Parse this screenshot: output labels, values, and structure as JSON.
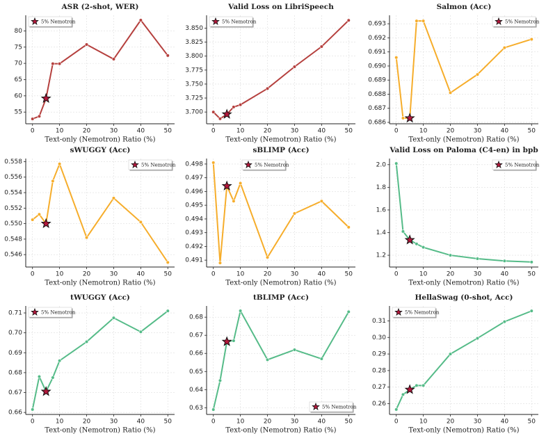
{
  "chart_data": [
    {
      "type": "line",
      "title": "ASR (2-shot, WER)",
      "x_label": "Text-only (Nemotron) Ratio (%)",
      "x": [
        0,
        2.5,
        5,
        7.5,
        10,
        20,
        30,
        40,
        50
      ],
      "values": [
        52.9,
        53.7,
        59.2,
        69.9,
        69.9,
        75.8,
        71.3,
        83.3,
        72.4
      ],
      "color": "#b5403e",
      "xlim": [
        -2.5,
        52.5
      ],
      "xticks": [
        0,
        10,
        20,
        30,
        40,
        50
      ],
      "ylim": [
        51.4,
        84.8
      ],
      "yticks": [
        55,
        60,
        65,
        70,
        75,
        80
      ],
      "grid": true,
      "highlight": {
        "label": "5% Nemotron",
        "x": 5,
        "color": "#b3173b"
      },
      "legend": "upper left"
    },
    {
      "type": "line",
      "title": "Valid Loss on LibriSpeech",
      "x_label": "Text-only (Nemotron) Ratio (%)",
      "x": [
        0,
        2.5,
        5,
        7.5,
        10,
        20,
        30,
        40,
        50
      ],
      "values": [
        3.7,
        3.688,
        3.696,
        3.709,
        3.713,
        3.742,
        3.781,
        3.817,
        3.864
      ],
      "color": "#b5403e",
      "xlim": [
        -2.5,
        52.5
      ],
      "xticks": [
        0,
        10,
        20,
        30,
        40,
        50
      ],
      "ylim": [
        3.679,
        3.873
      ],
      "yticks": [
        {
          "value": 3.7,
          "label": "3.700"
        },
        3.725,
        {
          "value": 3.75,
          "label": "3.750"
        },
        3.775,
        {
          "value": 3.8,
          "label": "3.800"
        },
        3.825,
        {
          "value": 3.85,
          "label": "3.850"
        }
      ],
      "grid": true,
      "highlight": {
        "label": "5% Nemotron",
        "x": 5,
        "color": "#b3173b"
      },
      "legend": "upper left"
    },
    {
      "type": "line",
      "title": "Salmon (Acc)",
      "x_label": "Text-only (Nemotron) Ratio (%)",
      "x": [
        0,
        2.5,
        5,
        7.5,
        10,
        20,
        30,
        40,
        50
      ],
      "values": [
        0.6906,
        0.6863,
        0.6863,
        0.6932,
        0.6932,
        0.6881,
        0.6894,
        0.6913,
        0.6919
      ],
      "color": "#f6ad2b",
      "xlim": [
        -2.5,
        52.5
      ],
      "xticks": [
        0,
        10,
        20,
        30,
        40,
        50
      ],
      "ylim": [
        0.6859,
        0.6936
      ],
      "yticks": [
        0.686,
        0.687,
        0.688,
        0.689,
        {
          "value": 0.69,
          "label": "0.690"
        },
        0.691,
        0.692,
        0.693
      ],
      "grid": true,
      "highlight": {
        "label": "5% Nemotron",
        "x": 5,
        "color": "#b3173b"
      },
      "legend": "upper right"
    },
    {
      "type": "line",
      "title": "sWUGGY (Acc)",
      "x_label": "Text-only (Nemotron) Ratio (%)",
      "x": [
        0,
        2.5,
        5,
        7.5,
        10,
        20,
        30,
        40,
        50
      ],
      "values": [
        0.5505,
        0.5512,
        0.55,
        0.5555,
        0.5577,
        0.5482,
        0.5533,
        0.5502,
        0.545
      ],
      "color": "#f6ad2b",
      "xlim": [
        -2.5,
        52.5
      ],
      "xticks": [
        0,
        10,
        20,
        30,
        40,
        50
      ],
      "ylim": [
        0.5444,
        0.5584
      ],
      "yticks": [
        0.546,
        0.548,
        {
          "value": 0.55,
          "label": "0.550"
        },
        0.552,
        0.554,
        0.556,
        0.558
      ],
      "grid": true,
      "highlight": {
        "label": "5% Nemotron",
        "x": 5,
        "color": "#b3173b"
      },
      "legend": "upper right"
    },
    {
      "type": "line",
      "title": "sBLIMP (Acc)",
      "x_label": "Text-only (Nemotron) Ratio (%)",
      "x": [
        0,
        2.5,
        5,
        7.5,
        10,
        20,
        30,
        40,
        50
      ],
      "values": [
        0.4981,
        0.4908,
        0.4964,
        0.4953,
        0.4966,
        0.4912,
        0.4944,
        0.4953,
        0.4934
      ],
      "color": "#f6ad2b",
      "xlim": [
        -2.5,
        52.5
      ],
      "xticks": [
        0,
        10,
        20,
        30,
        40,
        50
      ],
      "ylim": [
        0.4905,
        0.4984
      ],
      "yticks": [
        0.491,
        0.492,
        0.493,
        0.494,
        0.495,
        0.496,
        0.497,
        0.498
      ],
      "grid": true,
      "highlight": {
        "label": "5% Nemotron",
        "x": 5,
        "color": "#b3173b"
      },
      "legend": "upper center"
    },
    {
      "type": "line",
      "title": "Valid Loss on Paloma (C4-en) in bpb",
      "x_label": "Text-only (Nemotron) Ratio (%)",
      "x": [
        0,
        2.5,
        5,
        7.5,
        10,
        20,
        30,
        40,
        50
      ],
      "values": [
        2.01,
        1.41,
        1.335,
        1.3,
        1.27,
        1.2,
        1.17,
        1.15,
        1.14
      ],
      "color": "#55bb88",
      "xlim": [
        -2.5,
        52.5
      ],
      "xticks": [
        0,
        10,
        20,
        30,
        40,
        50
      ],
      "ylim": [
        1.096,
        2.054
      ],
      "yticks": [
        1.2,
        1.4,
        1.6,
        1.8,
        {
          "value": 2,
          "label": "2.0"
        }
      ],
      "grid": true,
      "highlight": {
        "label": "5% Nemotron",
        "x": 5,
        "color": "#b3173b"
      },
      "legend": "upper right"
    },
    {
      "type": "line",
      "title": "tWUGGY (Acc)",
      "x_label": "Text-only (Nemotron) Ratio (%)",
      "x": [
        0,
        2.5,
        5,
        7.5,
        10,
        20,
        30,
        40,
        50
      ],
      "values": [
        0.6615,
        0.678,
        0.6705,
        0.6775,
        0.686,
        0.6955,
        0.7075,
        0.7005,
        0.711
      ],
      "color": "#55bb88",
      "xlim": [
        -2.5,
        52.5
      ],
      "xticks": [
        0,
        10,
        20,
        30,
        40,
        50
      ],
      "ylim": [
        0.659,
        0.7135
      ],
      "yticks": [
        0.66,
        0.67,
        0.68,
        0.69,
        {
          "value": 0.7,
          "label": "0.70"
        },
        0.71
      ],
      "grid": true,
      "highlight": {
        "label": "5% Nemotron",
        "x": 5,
        "color": "#b3173b"
      },
      "legend": "upper left"
    },
    {
      "type": "line",
      "title": "tBLIMP (Acc)",
      "x_label": "Text-only (Nemotron) Ratio (%)",
      "x": [
        0,
        2.5,
        5,
        7.5,
        10,
        20,
        30,
        40,
        50
      ],
      "values": [
        0.629,
        0.645,
        0.6665,
        0.667,
        0.6835,
        0.6565,
        0.662,
        0.657,
        0.683
      ],
      "color": "#55bb88",
      "xlim": [
        -2.5,
        52.5
      ],
      "xticks": [
        0,
        10,
        20,
        30,
        40,
        50
      ],
      "ylim": [
        0.6263,
        0.6862
      ],
      "yticks": [
        0.63,
        0.64,
        0.65,
        0.66,
        0.67,
        0.68
      ],
      "grid": true,
      "highlight": {
        "label": "5% Nemotron",
        "x": 5,
        "color": "#b3173b"
      },
      "legend": "lower right"
    },
    {
      "type": "line",
      "title": "HellaSwag (0-shot, Acc)",
      "x_label": "Text-only (Nemotron) Ratio (%)",
      "x": [
        0,
        2.5,
        5,
        7.5,
        10,
        20,
        30,
        40,
        50
      ],
      "values": [
        0.2565,
        0.2655,
        0.2685,
        0.271,
        0.271,
        0.29,
        0.2995,
        0.3095,
        0.316
      ],
      "color": "#55bb88",
      "xlim": [
        -2.5,
        52.5
      ],
      "xticks": [
        0,
        10,
        20,
        30,
        40,
        50
      ],
      "ylim": [
        0.2535,
        0.319
      ],
      "yticks": [
        0.26,
        0.27,
        0.28,
        0.29,
        {
          "value": 0.3,
          "label": "0.30"
        },
        0.31
      ],
      "grid": true,
      "highlight": {
        "label": "5% Nemotron",
        "x": 5,
        "color": "#b3173b"
      },
      "legend": "upper left"
    }
  ]
}
